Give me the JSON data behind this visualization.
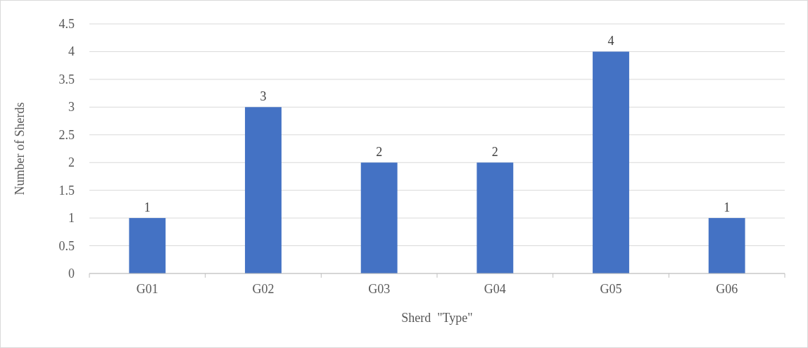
{
  "chart_data": {
    "type": "bar",
    "xlabel": "Sherd  \"Type\"",
    "ylabel": "Number of Sherds",
    "categories": [
      "G01",
      "G02",
      "G03",
      "G04",
      "G05",
      "G06"
    ],
    "values": [
      1,
      3,
      2,
      2,
      4,
      1
    ],
    "color": "#4472c4",
    "ylim": [
      0,
      4.5
    ],
    "yticks": [
      0,
      0.5,
      1,
      1.5,
      2,
      2.5,
      3,
      3.5,
      4,
      4.5
    ],
    "grid": "y",
    "data_labels": true
  }
}
